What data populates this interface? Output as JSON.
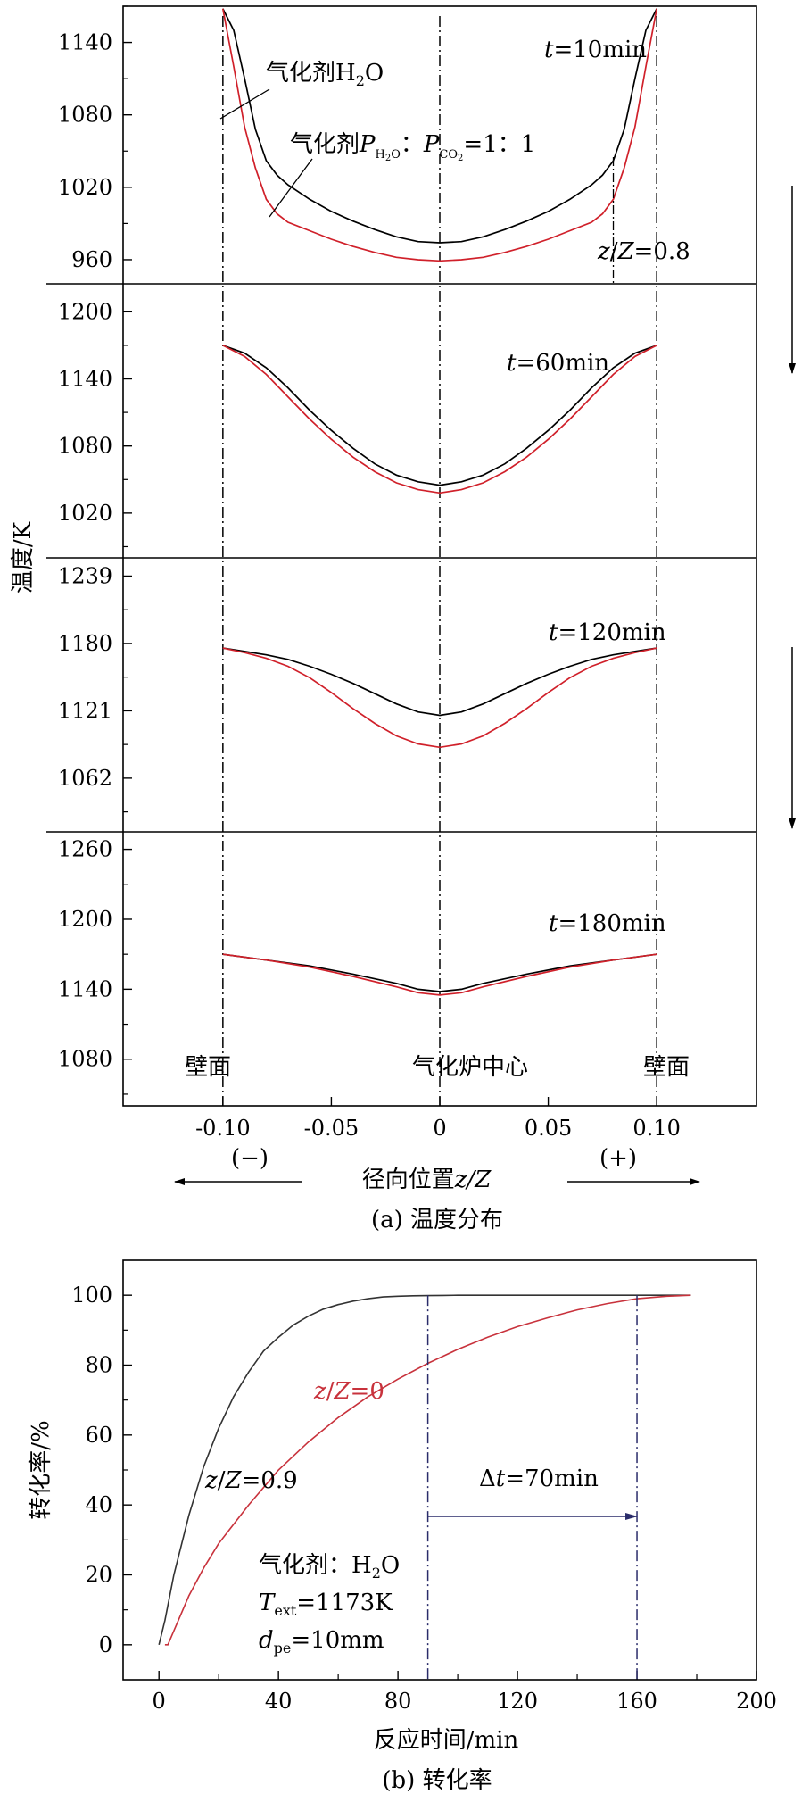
{
  "chart_data": [
    {
      "type": "line",
      "ylabel": "温度/K",
      "xlabel_prefix": "径向位置",
      "xlabel_var": "z/Z",
      "caption": "(a) 温度分布",
      "x_ticks": [
        "-0.10",
        "-0.05",
        "0",
        "0.05",
        "0.10"
      ],
      "x_tick_values": [
        -0.1,
        -0.05,
        0,
        0.05,
        0.1
      ],
      "xlim": [
        -0.146,
        0.146
      ],
      "annotations": {
        "wall_left": "壁面",
        "center": "气化炉中心",
        "wall_right": "壁面",
        "minus": "(−)",
        "plus": "(+)",
        "zZ_label": "z/Z=0.8",
        "zZ_value": 0.08
      },
      "series_names": [
        "气化剂H2O",
        "气化剂PH2O：PCO2=1：1"
      ],
      "series_colors": [
        "#000000",
        "#d0202a"
      ],
      "panels": [
        {
          "time_label": "t=10min",
          "ylim": [
            940,
            1170
          ],
          "y_ticks": [
            960,
            1020,
            1080,
            1140
          ],
          "series": [
            {
              "name": "气化剂H2O",
              "x": [
                -0.1,
                -0.095,
                -0.09,
                -0.085,
                -0.08,
                -0.075,
                -0.07,
                -0.06,
                -0.05,
                -0.04,
                -0.03,
                -0.02,
                -0.01,
                0,
                0.01,
                0.02,
                0.03,
                0.04,
                0.05,
                0.06,
                0.07,
                0.075,
                0.08,
                0.085,
                0.09,
                0.095,
                0.1
              ],
              "y": [
                1168,
                1150,
                1110,
                1068,
                1042,
                1030,
                1022,
                1010,
                1000,
                992,
                985,
                979,
                975,
                974,
                975,
                979,
                985,
                992,
                1000,
                1010,
                1022,
                1030,
                1042,
                1068,
                1110,
                1150,
                1168
              ]
            },
            {
              "name": "气化剂PH2O：PCO2=1：1",
              "x": [
                -0.1,
                -0.095,
                -0.09,
                -0.085,
                -0.08,
                -0.075,
                -0.07,
                -0.06,
                -0.05,
                -0.04,
                -0.03,
                -0.02,
                -0.01,
                0,
                0.01,
                0.02,
                0.03,
                0.04,
                0.05,
                0.06,
                0.07,
                0.075,
                0.08,
                0.085,
                0.09,
                0.095,
                0.1
              ],
              "y": [
                1168,
                1120,
                1070,
                1036,
                1010,
                998,
                991,
                984,
                977,
                971,
                966,
                962,
                960,
                959,
                960,
                962,
                966,
                971,
                977,
                984,
                991,
                998,
                1010,
                1036,
                1070,
                1120,
                1168
              ]
            }
          ]
        },
        {
          "time_label": "t=60min",
          "ylim": [
            980,
            1225
          ],
          "y_ticks": [
            1020,
            1080,
            1140,
            1200
          ],
          "series": [
            {
              "name": "气化剂H2O",
              "x": [
                -0.1,
                -0.09,
                -0.08,
                -0.07,
                -0.06,
                -0.05,
                -0.04,
                -0.03,
                -0.02,
                -0.01,
                0,
                0.01,
                0.02,
                0.03,
                0.04,
                0.05,
                0.06,
                0.07,
                0.08,
                0.09,
                0.1
              ],
              "y": [
                1170,
                1163,
                1150,
                1132,
                1112,
                1094,
                1078,
                1064,
                1054,
                1048,
                1045,
                1048,
                1054,
                1064,
                1078,
                1094,
                1112,
                1132,
                1150,
                1163,
                1170
              ]
            },
            {
              "name": "气化剂PH2O：PCO2=1：1",
              "x": [
                -0.1,
                -0.09,
                -0.08,
                -0.07,
                -0.06,
                -0.05,
                -0.04,
                -0.03,
                -0.02,
                -0.01,
                0,
                0.01,
                0.02,
                0.03,
                0.04,
                0.05,
                0.06,
                0.07,
                0.08,
                0.09,
                0.1
              ],
              "y": [
                1170,
                1160,
                1144,
                1124,
                1104,
                1086,
                1070,
                1057,
                1047,
                1041,
                1038,
                1041,
                1047,
                1057,
                1070,
                1086,
                1104,
                1124,
                1144,
                1160,
                1170
              ]
            }
          ]
        },
        {
          "time_label": "t=120min",
          "ylim": [
            1015,
            1255
          ],
          "y_ticks": [
            1062,
            1121,
            1180,
            1239
          ],
          "series": [
            {
              "name": "气化剂H2O",
              "x": [
                -0.1,
                -0.09,
                -0.08,
                -0.07,
                -0.06,
                -0.05,
                -0.04,
                -0.03,
                -0.02,
                -0.01,
                0,
                0.01,
                0.02,
                0.03,
                0.04,
                0.05,
                0.06,
                0.07,
                0.08,
                0.09,
                0.1
              ],
              "y": [
                1176,
                1173,
                1170,
                1166,
                1160,
                1153,
                1145,
                1136,
                1127,
                1120,
                1117,
                1120,
                1127,
                1136,
                1145,
                1153,
                1160,
                1166,
                1170,
                1173,
                1176
              ]
            },
            {
              "name": "气化剂PH2O：PCO2=1：1",
              "x": [
                -0.1,
                -0.09,
                -0.08,
                -0.07,
                -0.06,
                -0.05,
                -0.04,
                -0.03,
                -0.02,
                -0.01,
                0,
                0.01,
                0.02,
                0.03,
                0.04,
                0.05,
                0.06,
                0.07,
                0.08,
                0.09,
                0.1
              ],
              "y": [
                1176,
                1172,
                1167,
                1160,
                1150,
                1137,
                1123,
                1110,
                1099,
                1092,
                1089,
                1092,
                1099,
                1110,
                1123,
                1137,
                1150,
                1160,
                1167,
                1172,
                1176
              ]
            }
          ]
        },
        {
          "time_label": "t=180min",
          "ylim": [
            1040,
            1275
          ],
          "y_ticks": [
            1080,
            1140,
            1200,
            1260
          ],
          "series": [
            {
              "name": "气化剂H2O",
              "x": [
                -0.1,
                -0.08,
                -0.06,
                -0.04,
                -0.02,
                -0.01,
                0,
                0.01,
                0.02,
                0.04,
                0.06,
                0.08,
                0.1
              ],
              "y": [
                1170,
                1165,
                1160,
                1153,
                1145,
                1140,
                1138,
                1140,
                1145,
                1153,
                1160,
                1165,
                1170
              ]
            },
            {
              "name": "气化剂PH2O：PCO2=1：1",
              "x": [
                -0.1,
                -0.08,
                -0.06,
                -0.04,
                -0.02,
                -0.01,
                0,
                0.01,
                0.02,
                0.04,
                0.06,
                0.08,
                0.1
              ],
              "y": [
                1170,
                1165,
                1159,
                1151,
                1142,
                1137,
                1135,
                1137,
                1142,
                1151,
                1159,
                1165,
                1170
              ]
            }
          ]
        }
      ]
    },
    {
      "type": "line",
      "ylabel": "转化率/%",
      "xlabel": "反应时间/min",
      "caption": "(b) 转化率",
      "xlim": [
        -12,
        200
      ],
      "ylim": [
        -10,
        110
      ],
      "x_ticks": [
        0,
        40,
        80,
        120,
        160,
        200
      ],
      "y_ticks": [
        0,
        20,
        40,
        60,
        80,
        100
      ],
      "series": [
        {
          "name": "z/Z=0.9",
          "color": "#333333",
          "x": [
            0,
            2,
            5,
            10,
            15,
            20,
            25,
            30,
            35,
            40,
            45,
            50,
            55,
            60,
            65,
            70,
            75,
            80,
            85,
            90,
            95,
            100,
            110,
            120,
            140,
            160,
            178
          ],
          "y": [
            0,
            7,
            20,
            37,
            51,
            62,
            71,
            78,
            84,
            88,
            91.5,
            94,
            96,
            97.3,
            98.3,
            99,
            99.5,
            99.7,
            99.85,
            99.9,
            99.95,
            100,
            100,
            100,
            100,
            100,
            100
          ]
        },
        {
          "name": "z/Z=0",
          "color": "#c8323c",
          "x": [
            2,
            3,
            5,
            10,
            15,
            20,
            30,
            40,
            50,
            60,
            70,
            80,
            90,
            100,
            110,
            120,
            130,
            140,
            150,
            160,
            170,
            178
          ],
          "y": [
            0,
            0,
            4,
            14,
            22,
            29,
            40,
            50,
            58,
            65,
            71,
            76,
            80.5,
            84.5,
            88,
            91,
            93.5,
            95.8,
            97.6,
            99,
            99.7,
            100
          ]
        }
      ],
      "annotations": {
        "label_09": "z/Z=0.9",
        "label_0": "z/Z=0",
        "delta_t": "Δt=70min",
        "delta_from": 90,
        "delta_to": 160,
        "agent_label": "气化剂：H2O",
        "text_label": "Text=1173K",
        "dpe_label": "dpe=10mm"
      }
    }
  ]
}
